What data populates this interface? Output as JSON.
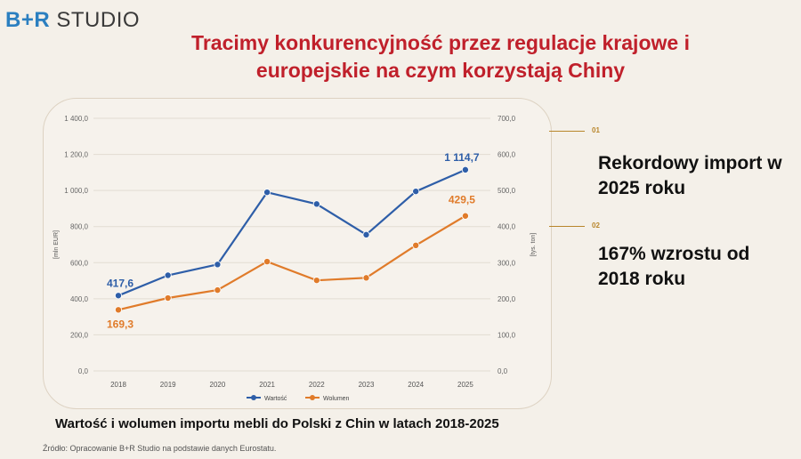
{
  "logo": {
    "brand": "B+R",
    "studio": "STUDIO"
  },
  "title": "Tracimy konkurencyjność przez regulacje krajowe i europejskie na czym korzystają Chiny",
  "callouts": [
    {
      "number": "01",
      "text": "Rekordowy import w 2025 roku"
    },
    {
      "number": "02",
      "text": "167% wzrostu od 2018 roku"
    }
  ],
  "caption": "Wartość i wolumen importu mebli do Polski z Chin w latach 2018-2025",
  "source": "Źródło: Opracowanie B+R Studio na podstawie danych Eurostatu.",
  "chart_data": {
    "type": "line",
    "x": [
      "2018",
      "2019",
      "2020",
      "2021",
      "2022",
      "2023",
      "2024",
      "2025"
    ],
    "y_left": {
      "label": "[mln EUR]",
      "range": [
        0,
        1400
      ],
      "ticks": [
        "0,0",
        "200,0",
        "400,0",
        "600,0",
        "800,0",
        "1 000,0",
        "1 200,0",
        "1 400,0"
      ]
    },
    "y_right": {
      "label": "[tys. ton]",
      "range": [
        0,
        700
      ],
      "ticks": [
        "0,0",
        "100,0",
        "200,0",
        "300,0",
        "400,0",
        "500,0",
        "600,0",
        "700,0"
      ]
    },
    "grid": true,
    "legend_position": "bottom",
    "series": [
      {
        "name": "Wartość",
        "axis": "left",
        "color": "#2e5ea8",
        "values": [
          417.6,
          530,
          590,
          990,
          925,
          755,
          995,
          1114.7
        ],
        "labels": [
          {
            "index": 0,
            "text": "417,6"
          },
          {
            "index": 7,
            "text": "1 114,7"
          }
        ]
      },
      {
        "name": "Wolumen",
        "axis": "right",
        "color": "#e07b2a",
        "values": [
          169.3,
          202,
          224,
          303,
          251,
          258,
          348,
          429.5
        ],
        "labels": [
          {
            "index": 0,
            "text": "169,3"
          },
          {
            "index": 7,
            "text": "429,5"
          }
        ]
      }
    ]
  }
}
